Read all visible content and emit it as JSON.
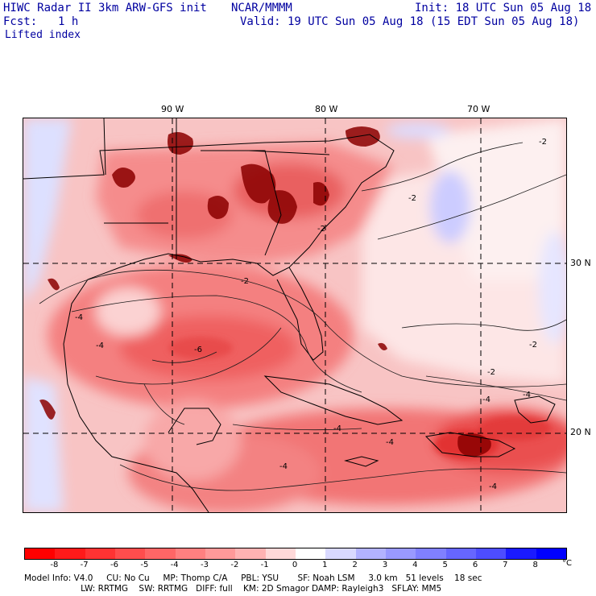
{
  "header": {
    "title": "HIWC Radar II 3km ARW-GFS init",
    "org": "NCAR/MMMM",
    "init": "Init: 18 UTC Sun 05 Aug 18",
    "fcst_label": "Fcst:",
    "fcst_value": "1 h",
    "valid": "Valid: 19 UTC Sun 05 Aug 18 (15 EDT Sun 05 Aug 18)",
    "field": "Lifted index"
  },
  "map": {
    "lon_labels": [
      "90 W",
      "80 W",
      "70 W"
    ],
    "lat_labels": [
      "30 N",
      "20 N"
    ],
    "contour_labels": [
      "-2",
      "-2",
      "-2",
      "-2",
      "-2",
      "-2",
      "-4",
      "-4",
      "-4",
      "-4",
      "-4",
      "-4",
      "-4",
      "-4",
      "-6"
    ]
  },
  "colorbar": {
    "labels": [
      "-8",
      "-7",
      "-6",
      "-5",
      "-4",
      "-3",
      "-2",
      "-1",
      "0",
      "1",
      "2",
      "3",
      "4",
      "5",
      "6",
      "7",
      "8"
    ],
    "unit": "°C",
    "colors": [
      "#ff0000",
      "#ff1a1a",
      "#ff3333",
      "#ff4d4d",
      "#ff6666",
      "#ff8080",
      "#ff9999",
      "#ffb3b3",
      "#ffd9d9",
      "#ffffff",
      "#d9d9ff",
      "#b3b3ff",
      "#9999ff",
      "#8080ff",
      "#6666ff",
      "#4d4dff",
      "#1a1aff",
      "#0000ff"
    ]
  },
  "footer": {
    "line1": "Model Info: V4.0     CU: No Cu     MP: Thomp C/A     PBL: YSU       SF: Noah LSM     3.0 km   51 levels    18 sec",
    "line2": "                     LW: RRTMG    SW: RRTMG   DIFF: full    KM: 2D Smagor DAMP: Rayleigh3   SFLAY: MM5"
  }
}
